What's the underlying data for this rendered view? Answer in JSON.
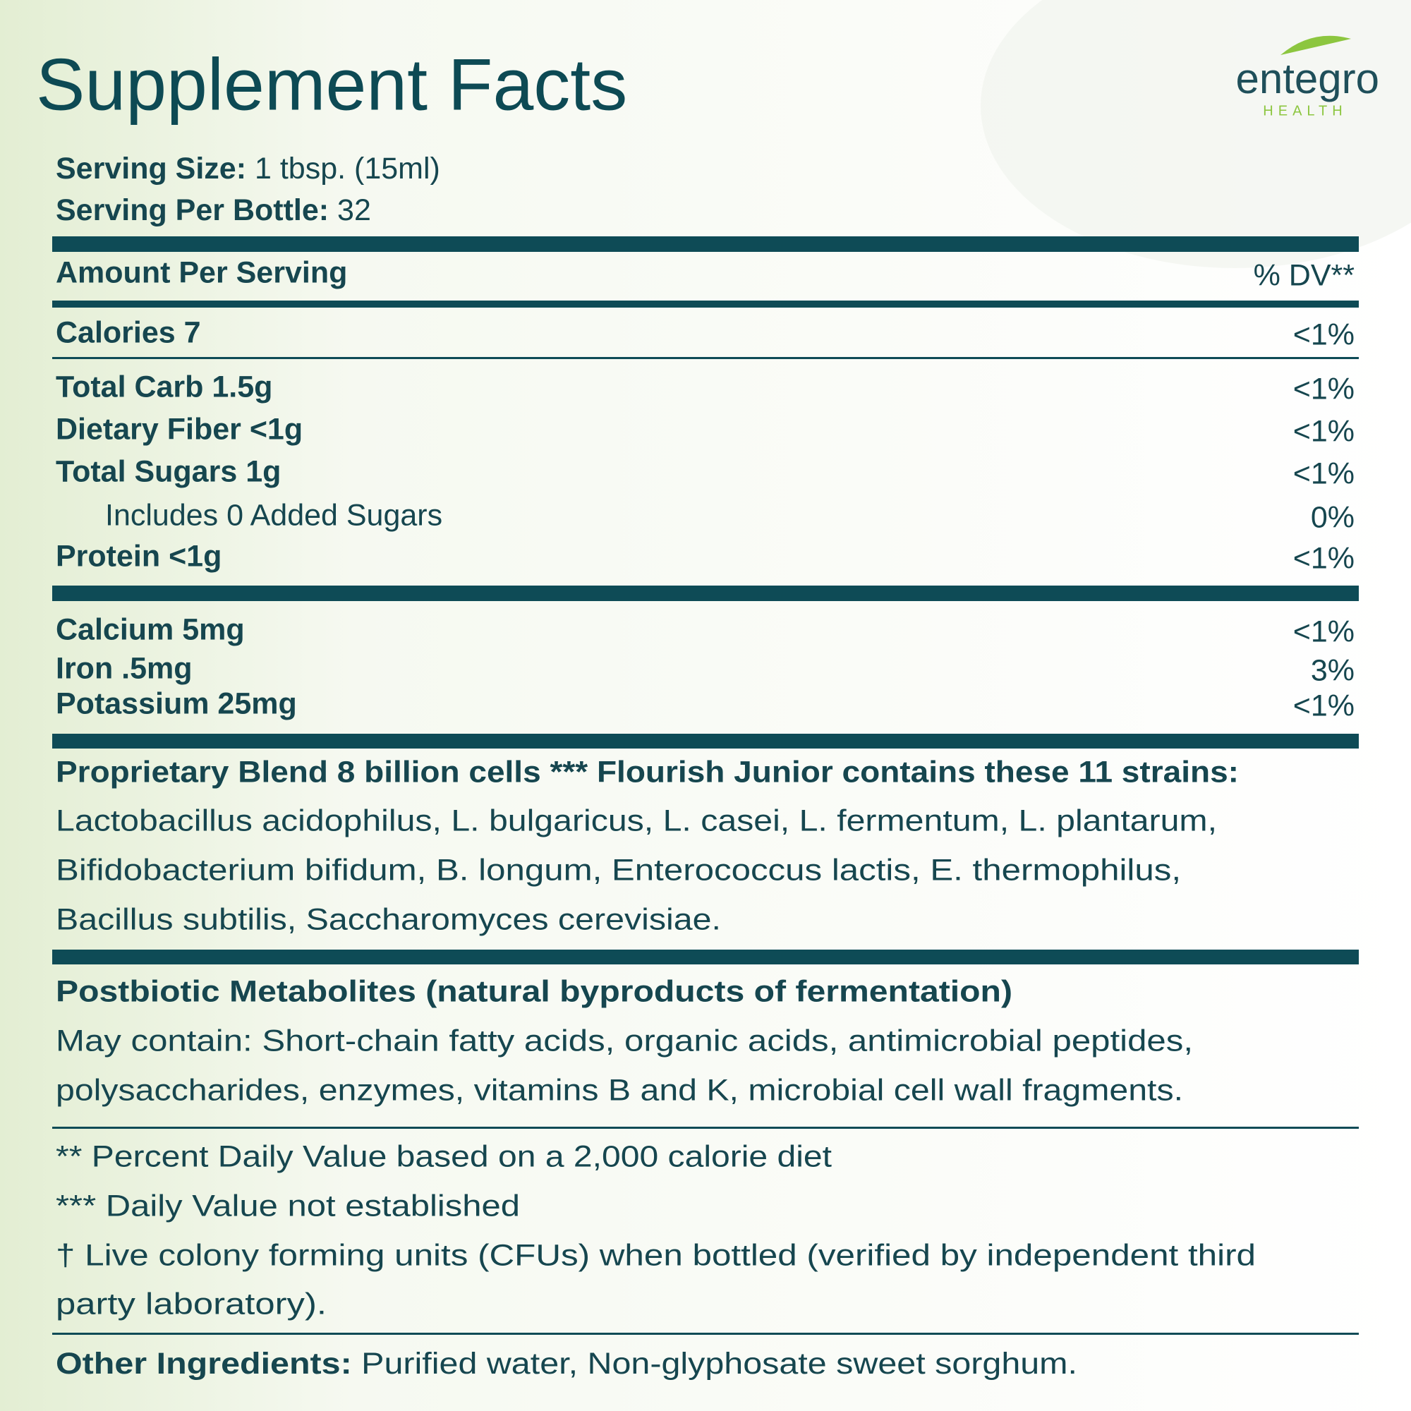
{
  "header": {
    "title": "Supplement Facts",
    "logo": {
      "name": "entegro",
      "tagline": "HEALTH"
    }
  },
  "serving": {
    "size_label": "Serving Size:",
    "size_value": "1 tbsp. (15ml)",
    "per_bottle_label": "Serving Per Bottle:",
    "per_bottle_value": "32"
  },
  "table": {
    "header": {
      "label": "Amount Per Serving",
      "dv": "% DV**"
    },
    "groups": [
      [
        {
          "label": "Calories 7",
          "dv": "<1%"
        }
      ],
      [
        {
          "label": "Total Carb 1.5g",
          "dv": "<1%"
        },
        {
          "label": "Dietary Fiber <1g",
          "dv": "<1%"
        },
        {
          "label": "Total Sugars 1g",
          "dv": "<1%"
        },
        {
          "label": "Includes 0 Added Sugars",
          "dv": "0%"
        },
        {
          "label": "Protein <1g",
          "dv": "<1%"
        }
      ],
      [
        {
          "label": "Calcium 5mg",
          "dv": "<1%"
        },
        {
          "label": "Iron .5mg",
          "dv": "3%"
        },
        {
          "label": "Potassium 25mg",
          "dv": "<1%"
        }
      ]
    ]
  },
  "blend": {
    "heading": "Proprietary Blend 8 billion cells *** Flourish Junior contains these 11 strains:",
    "lines": [
      "Lactobacillus acidophilus, L. bulgaricus, L. casei, L. fermentum, L. plantarum,",
      "Bifidobacterium bifidum, B. longum, Enterococcus lactis, E. thermophilus,",
      "Bacillus subtilis, Saccharomyces cerevisiae."
    ]
  },
  "postbiotic": {
    "heading": "Postbiotic Metabolites (natural byproducts of fermentation)",
    "lines": [
      "May contain: Short-chain fatty acids, organic acids, antimicrobial peptides,",
      "polysaccharides, enzymes, vitamins B and K, microbial cell wall fragments."
    ]
  },
  "footnotes": [
    "** Percent Daily Value based on a 2,000 calorie diet",
    " *** Daily Value not established",
    " † Live colony forming units (CFUs) when bottled (verified by independent third",
    "party laboratory)."
  ],
  "other": {
    "label": "Other Ingredients:",
    "value": "Purified water, Non-glyphosate sweet sorghum."
  }
}
